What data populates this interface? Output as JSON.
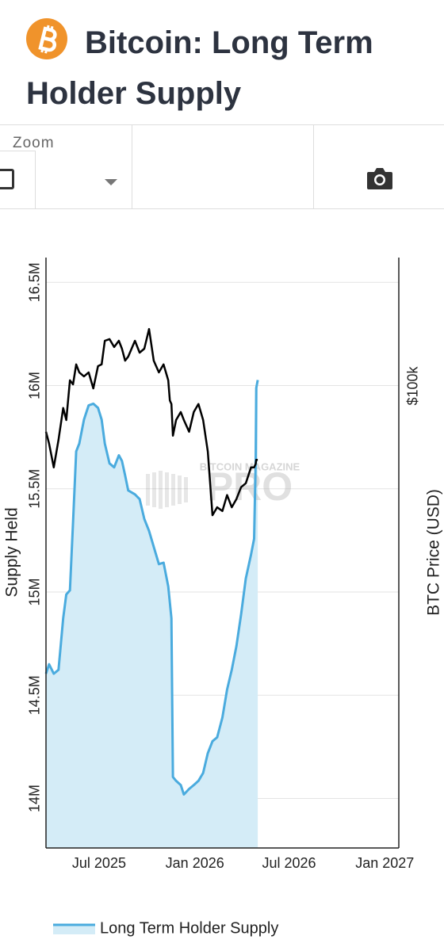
{
  "header": {
    "title": "Bitcoin: Long Term Holder Supply"
  },
  "toolbar": {
    "zoom_label": "Zoom"
  },
  "chart_data": {
    "type": "line",
    "x": [
      "2025-03-21",
      "2025-03-27",
      "2025-04-05",
      "2025-04-14",
      "2025-04-23",
      "2025-04-29",
      "2025-05-06",
      "2025-05-12",
      "2025-05-18",
      "2025-05-24",
      "2025-06-02",
      "2025-06-11",
      "2025-06-20",
      "2025-06-29",
      "2025-07-06",
      "2025-07-12",
      "2025-07-21",
      "2025-07-30",
      "2025-08-08",
      "2025-08-14",
      "2025-08-20",
      "2025-08-26",
      "2025-09-08",
      "2025-09-17",
      "2025-09-26",
      "2025-10-05",
      "2025-10-14",
      "2025-10-24",
      "2025-11-02",
      "2025-11-11",
      "2025-11-14",
      "2025-11-17",
      "2025-11-20",
      "2025-11-26",
      "2025-12-05",
      "2025-12-11",
      "2025-12-21",
      "2025-12-30",
      "2026-01-08",
      "2026-01-17",
      "2026-01-26",
      "2026-02-04",
      "2026-02-13",
      "2026-02-23",
      "2026-03-04",
      "2026-03-13",
      "2026-03-22",
      "2026-03-31",
      "2026-04-09",
      "2026-04-19",
      "2026-04-25",
      "2026-04-28",
      "2026-04-29",
      "2026-05-02"
    ],
    "xlim": [
      "2025-03-21",
      "2027-01-28"
    ],
    "xticks": [
      {
        "value": "2025-07-01",
        "label": "Jul 2025"
      },
      {
        "value": "2026-01-01",
        "label": "Jan 2026"
      },
      {
        "value": "2026-07-01",
        "label": "Jul 2026"
      },
      {
        "value": "2027-01-01",
        "label": "Jan 2027"
      }
    ],
    "ylim": [
      13760000,
      16620000
    ],
    "yticks": [
      {
        "value": 14000000,
        "label": "14M"
      },
      {
        "value": 14500000,
        "label": "14.5M"
      },
      {
        "value": 15000000,
        "label": "15M"
      },
      {
        "value": 15500000,
        "label": "15.5M"
      },
      {
        "value": 16000000,
        "label": "16M"
      },
      {
        "value": 16500000,
        "label": "16.5M"
      }
    ],
    "y2lim": [
      22900,
      150600
    ],
    "y2log": true,
    "y2ticks": [
      {
        "value": 100000,
        "label": "$100k"
      }
    ],
    "ylabel": "Supply Held",
    "y2label": "BTC Price (USD)",
    "grid": true,
    "legend": "bottom-left",
    "watermark": {
      "small": "BITCOIN MAGAZINE",
      "big": "PRO"
    },
    "series": [
      {
        "name": "Long Term Holder Supply",
        "color": "#4aabde",
        "fill": "#d4ecf7",
        "values": [
          14604000,
          14650000,
          14604000,
          14623000,
          14873000,
          14988000,
          15008000,
          15335000,
          15681000,
          15719000,
          15835000,
          15904000,
          15912000,
          15892000,
          15835000,
          15719000,
          15623000,
          15604000,
          15662000,
          15635000,
          15565000,
          15492000,
          15473000,
          15450000,
          15354000,
          15296000,
          15219000,
          15135000,
          15142000,
          15027000,
          14950000,
          14873000,
          14104000,
          14085000,
          14065000,
          14019000,
          14046000,
          14065000,
          14085000,
          14123000,
          14219000,
          14277000,
          14296000,
          14392000,
          14527000,
          14623000,
          14738000,
          14892000,
          15065000,
          15181000,
          15258000,
          15642000,
          15988000,
          16027000
        ]
      },
      {
        "color": "#000000",
        "axis": "y2",
        "values": [
          86400,
          83200,
          77100,
          84200,
          93200,
          89700,
          101800,
          100500,
          107100,
          104400,
          103100,
          104400,
          99200,
          106500,
          107100,
          115500,
          116100,
          113200,
          115500,
          112600,
          108400,
          109800,
          115500,
          111200,
          112600,
          119900,
          108400,
          104400,
          107100,
          101800,
          95500,
          94400,
          85300,
          89700,
          92000,
          89700,
          86400,
          92000,
          94400,
          89700,
          81100,
          66200,
          67900,
          67100,
          70600,
          67900,
          69700,
          72400,
          73300,
          77100,
          77100,
          78000,
          79000,
          79000
        ]
      }
    ]
  }
}
